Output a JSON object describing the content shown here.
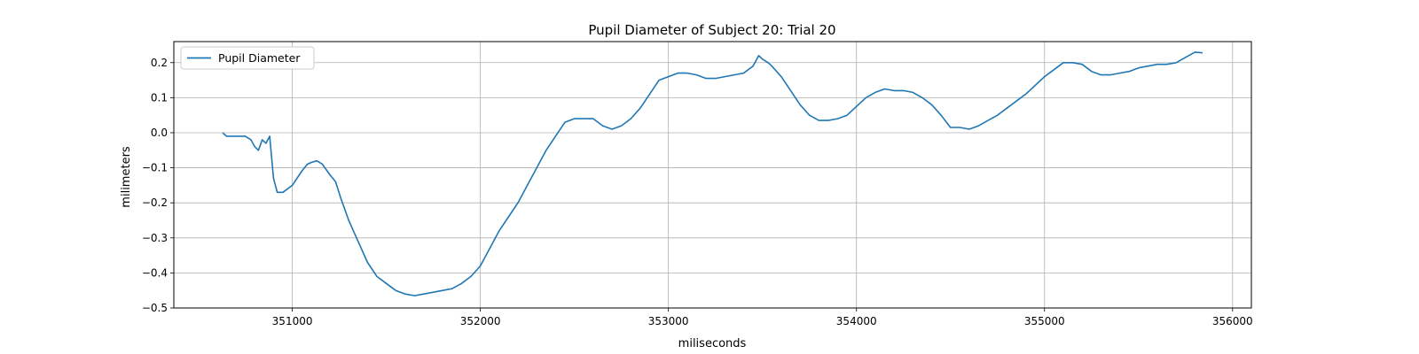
{
  "chart_data": {
    "type": "line",
    "title": "Pupil Diameter of Subject 20: Trial 20",
    "xlabel": "miliseconds",
    "ylabel": "milimeters",
    "xlim": [
      350370,
      356100
    ],
    "ylim": [
      -0.5,
      0.26
    ],
    "xticks": [
      351000,
      352000,
      353000,
      354000,
      355000,
      356000
    ],
    "yticks": [
      -0.5,
      -0.4,
      -0.3,
      -0.2,
      -0.1,
      0.0,
      0.1,
      0.2
    ],
    "ytick_labels": [
      "−0.5",
      "−0.4",
      "−0.3",
      "−0.2",
      "−0.1",
      "0.0",
      "0.1",
      "0.2"
    ],
    "grid": true,
    "legend_position": "top-left",
    "color": "#1f77b4",
    "series": [
      {
        "name": "Pupil Diameter",
        "x": [
          350630,
          350650,
          350700,
          350750,
          350780,
          350800,
          350820,
          350840,
          350860,
          350880,
          350900,
          350920,
          350950,
          351000,
          351050,
          351080,
          351100,
          351130,
          351160,
          351200,
          351230,
          351260,
          351300,
          351350,
          351400,
          351450,
          351500,
          351550,
          351600,
          351650,
          351700,
          351750,
          351800,
          351850,
          351900,
          351950,
          352000,
          352050,
          352100,
          352150,
          352200,
          352250,
          352300,
          352350,
          352400,
          352450,
          352500,
          352550,
          352600,
          352650,
          352700,
          352750,
          352800,
          352850,
          352900,
          352950,
          353000,
          353050,
          353100,
          353150,
          353200,
          353250,
          353300,
          353350,
          353400,
          353450,
          353480,
          353500,
          353530,
          353550,
          353600,
          353650,
          353700,
          353750,
          353800,
          353850,
          353900,
          353950,
          354000,
          354050,
          354100,
          354150,
          354200,
          354250,
          354300,
          354350,
          354400,
          354450,
          354500,
          354550,
          354600,
          354650,
          354700,
          354750,
          354800,
          354850,
          354900,
          354950,
          355000,
          355050,
          355100,
          355150,
          355200,
          355250,
          355300,
          355350,
          355400,
          355450,
          355500,
          355550,
          355600,
          355650,
          355700,
          355750,
          355800,
          355840
        ],
        "y": [
          0.0,
          -0.01,
          -0.01,
          -0.01,
          -0.02,
          -0.04,
          -0.05,
          -0.02,
          -0.03,
          -0.01,
          -0.13,
          -0.17,
          -0.17,
          -0.15,
          -0.11,
          -0.09,
          -0.085,
          -0.08,
          -0.09,
          -0.12,
          -0.14,
          -0.19,
          -0.25,
          -0.31,
          -0.37,
          -0.41,
          -0.43,
          -0.45,
          -0.46,
          -0.465,
          -0.46,
          -0.455,
          -0.45,
          -0.445,
          -0.43,
          -0.41,
          -0.38,
          -0.33,
          -0.28,
          -0.24,
          -0.2,
          -0.15,
          -0.1,
          -0.05,
          -0.01,
          0.03,
          0.04,
          0.04,
          0.04,
          0.02,
          0.01,
          0.02,
          0.04,
          0.07,
          0.11,
          0.15,
          0.16,
          0.17,
          0.17,
          0.165,
          0.155,
          0.155,
          0.16,
          0.165,
          0.17,
          0.19,
          0.22,
          0.21,
          0.2,
          0.19,
          0.16,
          0.12,
          0.08,
          0.05,
          0.035,
          0.035,
          0.04,
          0.05,
          0.075,
          0.1,
          0.115,
          0.125,
          0.12,
          0.12,
          0.115,
          0.1,
          0.08,
          0.05,
          0.015,
          0.015,
          0.01,
          0.02,
          0.035,
          0.05,
          0.07,
          0.09,
          0.11,
          0.135,
          0.16,
          0.18,
          0.2,
          0.2,
          0.195,
          0.175,
          0.165,
          0.165,
          0.17,
          0.175,
          0.185,
          0.19,
          0.195,
          0.195,
          0.2,
          0.215,
          0.23,
          0.228
        ]
      }
    ]
  }
}
